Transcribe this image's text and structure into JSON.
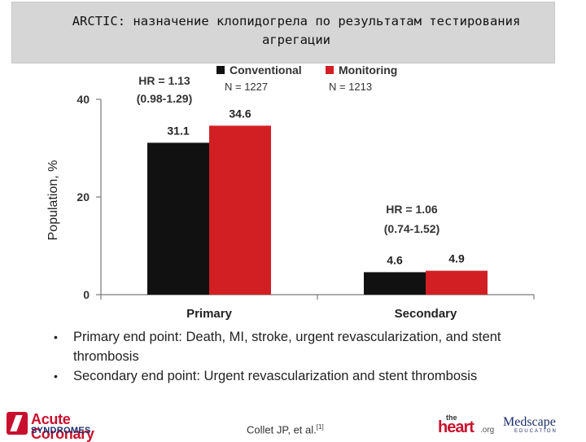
{
  "slide": {
    "title": "ARCTIC: назначение клопидогрела по результатам тестирования агрегации"
  },
  "chart_data": {
    "type": "bar",
    "categories": [
      "Primary",
      "Secondary"
    ],
    "series": [
      {
        "name": "Conventional",
        "n_label": "N = 1227",
        "color": "#111111",
        "values": [
          31.1,
          4.6
        ]
      },
      {
        "name": "Monitoring",
        "n_label": "N = 1213",
        "color": "#d21f24",
        "values": [
          34.6,
          4.9
        ]
      }
    ],
    "ylabel": "Population, %",
    "xlabel": "",
    "ylim": [
      0,
      40
    ],
    "yticks": [
      0,
      20,
      40
    ],
    "legend_position": "top",
    "grid": false,
    "annotations": [
      {
        "category": "Primary",
        "line1": "HR = 1.13",
        "line2": "(0.98-1.29)"
      },
      {
        "category": "Secondary",
        "line1": "HR = 1.06",
        "line2": "(0.74-1.52)"
      }
    ]
  },
  "bullets": [
    "Primary end point: Death, MI, stroke, urgent revascularization, and stent thrombosis",
    "Secondary end point: Urgent revascularization and stent thrombosis"
  ],
  "footer": {
    "citation": "Collet JP, et al.",
    "citation_ref": "[1]",
    "acs_logo_line1": "Acute Coronary",
    "acs_logo_line2": "SYNDROMES",
    "heart_the": "the",
    "heart_main": "heart",
    "heart_org": ".org",
    "medscape_name": "Medscape",
    "medscape_sub": "EDUCATION"
  }
}
